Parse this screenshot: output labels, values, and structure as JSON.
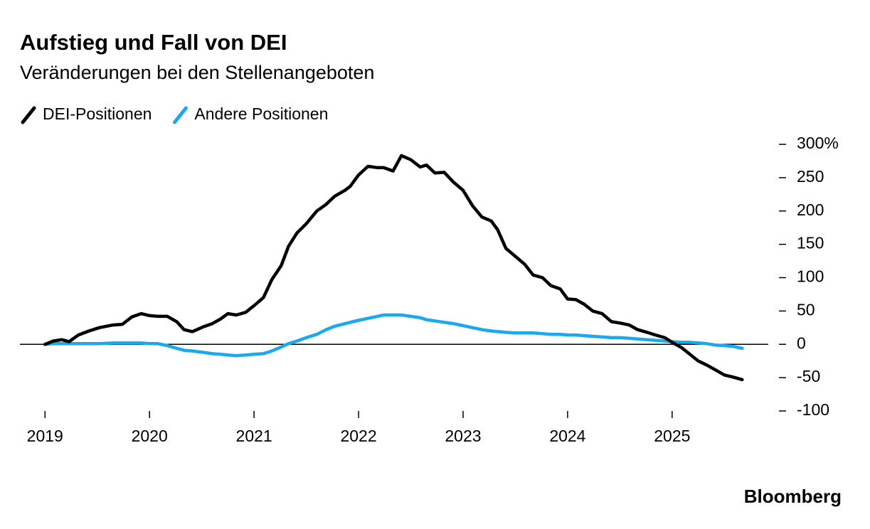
{
  "chart_data": {
    "type": "line",
    "title": "Aufstieg und Fall von DEI",
    "subtitle": "Veränderungen bei den Stellenangeboten",
    "source": "Bloomberg",
    "x": [
      2019.0,
      2019.08,
      2019.16,
      2019.23,
      2019.32,
      2019.42,
      2019.52,
      2019.65,
      2019.74,
      2019.83,
      2019.92,
      2020.0,
      2020.08,
      2020.17,
      2020.26,
      2020.33,
      2020.41,
      2020.51,
      2020.6,
      2020.68,
      2020.75,
      2020.83,
      2020.92,
      2021.0,
      2021.09,
      2021.17,
      2021.26,
      2021.33,
      2021.41,
      2021.5,
      2021.6,
      2021.69,
      2021.77,
      2021.87,
      2021.92,
      2022.0,
      2022.09,
      2022.18,
      2022.24,
      2022.33,
      2022.41,
      2022.5,
      2022.59,
      2022.65,
      2022.73,
      2022.82,
      2022.91,
      2023.0,
      2023.09,
      2023.18,
      2023.27,
      2023.33,
      2023.41,
      2023.5,
      2023.59,
      2023.67,
      2023.76,
      2023.84,
      2023.93,
      2024.0,
      2024.08,
      2024.16,
      2024.24,
      2024.33,
      2024.42,
      2024.5,
      2024.59,
      2024.67,
      2024.76,
      2024.84,
      2024.93,
      2025.0,
      2025.09,
      2025.17,
      2025.25,
      2025.33,
      2025.41,
      2025.5,
      2025.58,
      2025.67
    ],
    "series": [
      {
        "name": "DEI-Positionen",
        "color": "#000000",
        "values": [
          0,
          5,
          7,
          4,
          14,
          20,
          25,
          29,
          30,
          41,
          46,
          43,
          42,
          42,
          34,
          22,
          19,
          26,
          31,
          38,
          46,
          44,
          48,
          58,
          70,
          97,
          118,
          147,
          167,
          181,
          200,
          210,
          222,
          231,
          237,
          254,
          267,
          265,
          265,
          260,
          283,
          277,
          266,
          269,
          257,
          258,
          243,
          231,
          208,
          191,
          185,
          172,
          144,
          132,
          120,
          104,
          100,
          88,
          83,
          68,
          67,
          60,
          50,
          46,
          34,
          32,
          29,
          22,
          18,
          14,
          10,
          3,
          -5,
          -15,
          -25,
          -31,
          -38,
          -46,
          -49,
          -53
        ]
      },
      {
        "name": "Andere Positionen",
        "color": "#1aa9ef",
        "values": [
          0,
          1,
          1,
          1,
          1,
          1,
          1,
          2,
          2,
          2,
          2,
          1,
          1,
          -2,
          -6,
          -9,
          -10,
          -12,
          -14,
          -15,
          -16,
          -17,
          -16,
          -15,
          -14,
          -10,
          -4,
          1,
          5,
          10,
          15,
          22,
          27,
          31,
          33,
          36,
          39,
          42,
          44,
          44,
          44,
          42,
          40,
          37,
          35,
          33,
          31,
          28,
          25,
          22,
          20,
          19,
          18,
          17,
          17,
          17,
          16,
          15,
          15,
          14,
          14,
          13,
          12,
          11,
          10,
          10,
          9,
          8,
          7,
          6,
          5,
          4,
          3,
          3,
          2,
          1,
          -1,
          -2,
          -3,
          -6
        ]
      }
    ],
    "xlim": [
      2018.76,
      2025.92
    ],
    "xticks": [
      2019,
      2020,
      2021,
      2022,
      2023,
      2024,
      2025
    ],
    "ylim": [
      -100,
      300
    ],
    "yticks": [
      {
        "value": 300,
        "label": "300%"
      },
      250,
      200,
      150,
      100,
      50,
      0,
      -50,
      -100
    ]
  }
}
